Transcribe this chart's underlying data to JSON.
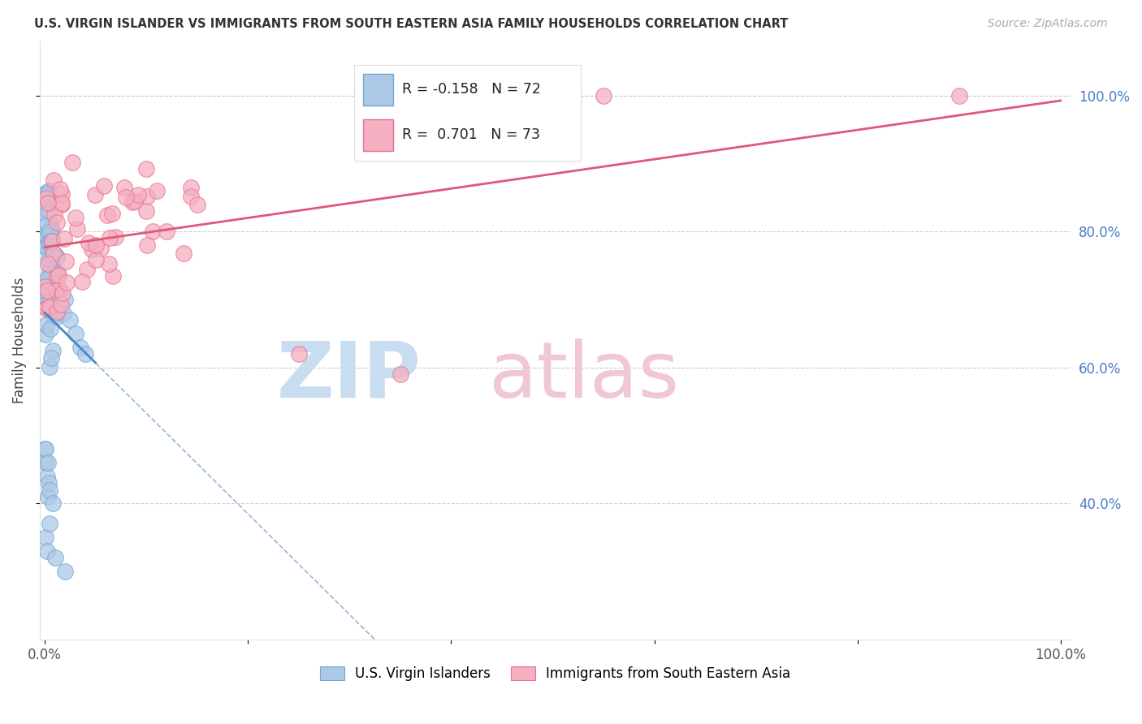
{
  "title": "U.S. VIRGIN ISLANDER VS IMMIGRANTS FROM SOUTH EASTERN ASIA FAMILY HOUSEHOLDS CORRELATION CHART",
  "source": "Source: ZipAtlas.com",
  "ylabel": "Family Households",
  "legend_blue_label": "U.S. Virgin Islanders",
  "legend_pink_label": "Immigrants from South Eastern Asia",
  "R_blue": -0.158,
  "N_blue": 72,
  "R_pink": 0.701,
  "N_pink": 73,
  "blue_color": "#adc8e6",
  "blue_edge_color": "#6fa8d4",
  "blue_line_color": "#4a86c8",
  "pink_color": "#f4afc0",
  "pink_edge_color": "#e87090",
  "pink_line_color": "#e05878",
  "right_yticks": [
    0.4,
    0.6,
    0.8,
    1.0
  ],
  "right_yticklabels": [
    "40.0%",
    "60.0%",
    "80.0%",
    "100.0%"
  ],
  "right_tick_color": "#4a7cc7",
  "xlim": [
    -0.005,
    1.01
  ],
  "ylim": [
    0.2,
    1.08
  ],
  "grid_color": "#cccccc",
  "bg_color": "#ffffff",
  "title_color": "#333333",
  "source_color": "#aaaaaa",
  "watermark_zip_color": "#c8ddf0",
  "watermark_atlas_color": "#f0c8d4"
}
